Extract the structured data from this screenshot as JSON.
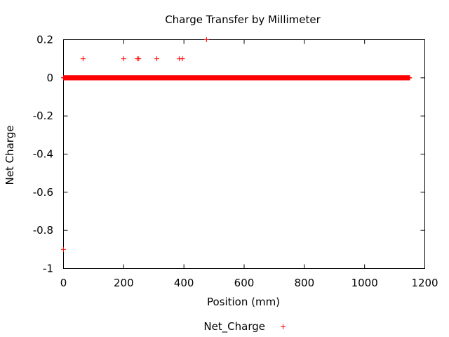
{
  "chart_data": {
    "type": "scatter",
    "title": "Charge Transfer by Millimeter",
    "xlabel": "Position (mm)",
    "ylabel": "Net Charge",
    "xlim": [
      0,
      1200
    ],
    "ylim": [
      -1,
      0.2
    ],
    "xticks": [
      0,
      200,
      400,
      600,
      800,
      1000,
      1200
    ],
    "yticks": [
      -1,
      -0.8,
      -0.6,
      -0.4,
      -0.2,
      0,
      0.2
    ],
    "ytick_labels": [
      "-1",
      "-0.8",
      "-0.6",
      "-0.4",
      "-0.2",
      "0",
      "0.2"
    ],
    "grid": false,
    "legend_position": "bottom-center",
    "marker": "plus",
    "color": "#ff0000",
    "series": [
      {
        "name": "Net_Charge",
        "baseline": {
          "y": 0,
          "x_range": [
            0,
            1150
          ],
          "step": 1
        },
        "points": [
          {
            "x": 0,
            "y": -0.9
          },
          {
            "x": 65,
            "y": 0.1
          },
          {
            "x": 200,
            "y": 0.1
          },
          {
            "x": 245,
            "y": 0.1
          },
          {
            "x": 250,
            "y": 0.1
          },
          {
            "x": 310,
            "y": 0.1
          },
          {
            "x": 385,
            "y": 0.1
          },
          {
            "x": 395,
            "y": 0.1
          },
          {
            "x": 475,
            "y": 0.2
          }
        ]
      }
    ]
  }
}
